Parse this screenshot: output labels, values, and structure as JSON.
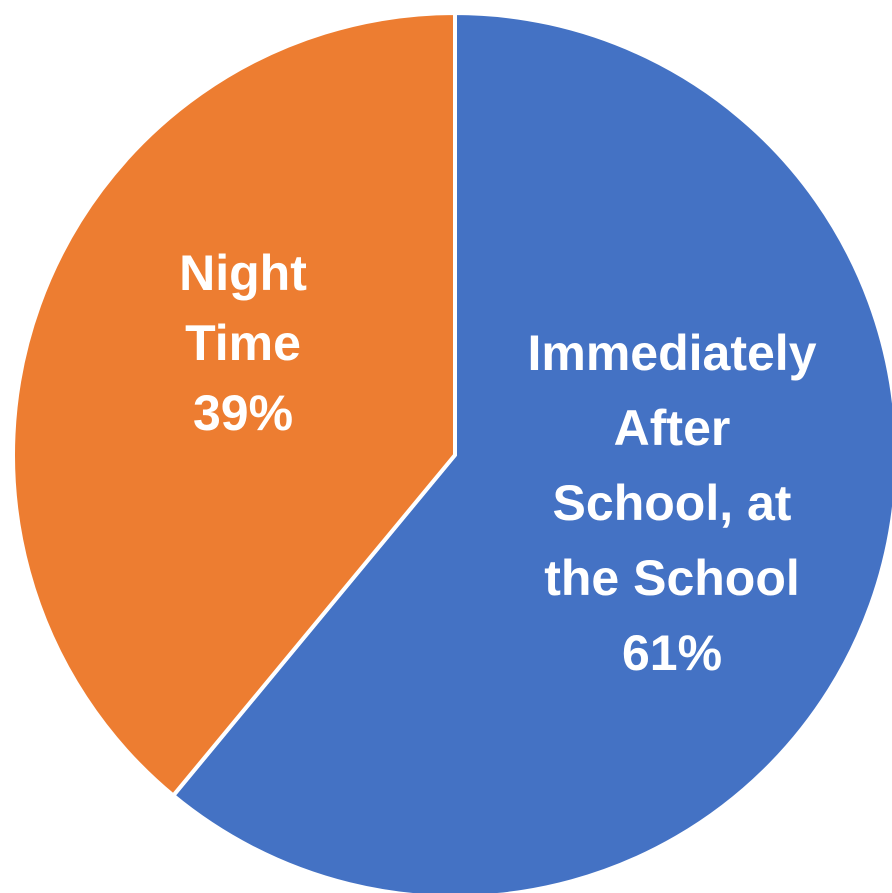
{
  "chart_data": {
    "type": "pie",
    "title": "",
    "start_angle_deg": 0,
    "direction": "clockwise",
    "slices": [
      {
        "id": "after-school",
        "label_lines": [
          "Immediately",
          "After",
          "School, at",
          "the School"
        ],
        "percent_label": "61%",
        "value": 61,
        "color": "#4472C4"
      },
      {
        "id": "night-time",
        "label_lines": [
          "Night",
          "Time"
        ],
        "percent_label": "39%",
        "value": 39,
        "color": "#ED7D31"
      }
    ],
    "slice_border_color": "#FFFFFF",
    "legend": "none"
  }
}
